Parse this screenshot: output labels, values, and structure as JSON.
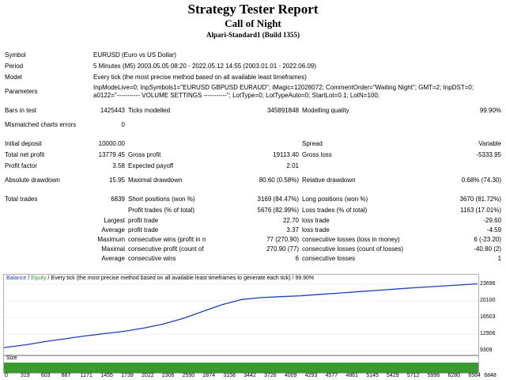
{
  "header": {
    "title": "Strategy Tester Report",
    "expert": "Call of Night",
    "account": "Alpari-Standard1 (Build 1355)"
  },
  "info": {
    "symbol_label": "Symbol",
    "symbol": "EURUSD (Euro vs US Dollar)",
    "period_label": "Period",
    "period": "5 Minutes (M5) 2003.05.05 08:20 - 2022.05.12 14:55 (2003.01.01 - 2022.06.09)",
    "model_label": "Model",
    "model": "Every tick (the most precise method based on all available least timeframes)",
    "params_label": "Parameters",
    "params_line1": "InpModeLive=0; InpSymbols1=\"EURUSD GBPUSD EURAUD\"; iMagic=12028072; CommentOrder=\"Waiting Night\"; GMT=2; InpDST=0;",
    "params_line2": "a0122=\"----------- VOLUME SETTINGS -----------\"; LotType=0; LotTypeAuto=0; StartLot=0.1; LotN=100;"
  },
  "stats": {
    "bars_label": "Bars in test",
    "bars": "1425443",
    "ticks_label": "Ticks modelled",
    "ticks": "345891848",
    "quality_label": "Modelling quality",
    "quality": "99.90%",
    "mismatch_label": "Mismatched charts errors",
    "mismatch": "0",
    "deposit_label": "Initial deposit",
    "deposit": "10000.00",
    "spread_label": "Spread",
    "spread": "Variable",
    "netprofit_label": "Total net profit",
    "netprofit": "13779.45",
    "grossprofit_label": "Gross profit",
    "grossprofit": "19113.40",
    "grossloss_label": "Gross loss",
    "grossloss": "-5333.95",
    "pf_label": "Profit factor",
    "pf": "3.58",
    "payoff_label": "Expected payoff",
    "payoff": "2.01",
    "absdd_label": "Absolute drawdown",
    "absdd": "15.95",
    "maxdd_label": "Maximal drawdown",
    "maxdd": "80.60 (0.58%)",
    "reldd_label": "Relative drawdown",
    "reldd": "0.68% (74.30)",
    "trades_label": "Total trades",
    "trades": "6839",
    "short_label": "Short positions (won %)",
    "short": "3169 (84.47%)",
    "long_label": "Long positions (won %)",
    "long": "3670 (81.72%)",
    "ptrades_label": "Profit trades (% of total)",
    "ptrades": "5676 (82.99%)",
    "ltrades_label": "Loss trades (% of total)",
    "ltrades": "1163 (17.01%)",
    "largest_label": "Largest",
    "lprofit_label": "profit trade",
    "lprofit": "22.70",
    "lloss_label": "loss trade",
    "lloss": "-29.60",
    "average_label": "Average",
    "aprofit_label": "profit trade",
    "aprofit": "3.37",
    "aloss_label": "loss trade",
    "aloss": "-4.59",
    "maximum_label": "Maximum",
    "mcw_label": "consecutive wins (profit in money)",
    "mcw": "77 (270.90)",
    "mcl_label": "consecutive losses (loss in money)",
    "mcl": "6 (-23.20)",
    "maximal_label": "Maximal",
    "mcp_label": "consecutive profit (count of wins)",
    "mcp": "270.90 (77)",
    "mcloss_label": "consecutive losses (count of losses)",
    "mcloss": "-40.80 (2)",
    "average2_label": "Average",
    "acw_label": "consecutive wins",
    "acw": "6",
    "acl_label": "consecutive losses",
    "acl": "1"
  },
  "chart_data": {
    "type": "line",
    "legend_balance": "Balance",
    "legend_sep1": " / ",
    "legend_equity": "Equity",
    "legend_rest": " / Every tick (the most precise method based on all available least timeframes to generate each tick) / 99.90%",
    "size_label": "Size",
    "balance_color": "#1f3fbf",
    "equity_color": "#2aa02a",
    "size_color": "#3a9a2e",
    "y_ticks": [
      "23696",
      "20100",
      "16503",
      "12906",
      "9309"
    ],
    "y_tick_values": [
      23696,
      20100,
      16503,
      12906,
      9309
    ],
    "ylim": [
      9309,
      23696
    ],
    "x_ticks": [
      "0",
      "319",
      "603",
      "887",
      "1171",
      "1455",
      "1739",
      "2022",
      "2306",
      "2590",
      "2874",
      "3158",
      "3442",
      "3726",
      "4009",
      "4293",
      "4577",
      "4861",
      "5145",
      "5429",
      "5712",
      "5996",
      "6280",
      "6564",
      "6848"
    ],
    "xlim": [
      0,
      6848
    ],
    "series": [
      {
        "name": "Balance",
        "x": [
          0,
          319,
          603,
          887,
          1171,
          1455,
          1739,
          2022,
          2306,
          2590,
          2874,
          3158,
          3442,
          3726,
          4009,
          4293,
          4577,
          4861,
          5145,
          5429,
          5712,
          5996,
          6280,
          6564,
          6848
        ],
        "values": [
          10000,
          10600,
          11300,
          11900,
          12500,
          13000,
          13500,
          14200,
          15100,
          16300,
          17800,
          19300,
          20400,
          20800,
          21000,
          21200,
          21500,
          21800,
          22100,
          22400,
          22700,
          23000,
          23250,
          23500,
          23780
        ]
      }
    ]
  }
}
